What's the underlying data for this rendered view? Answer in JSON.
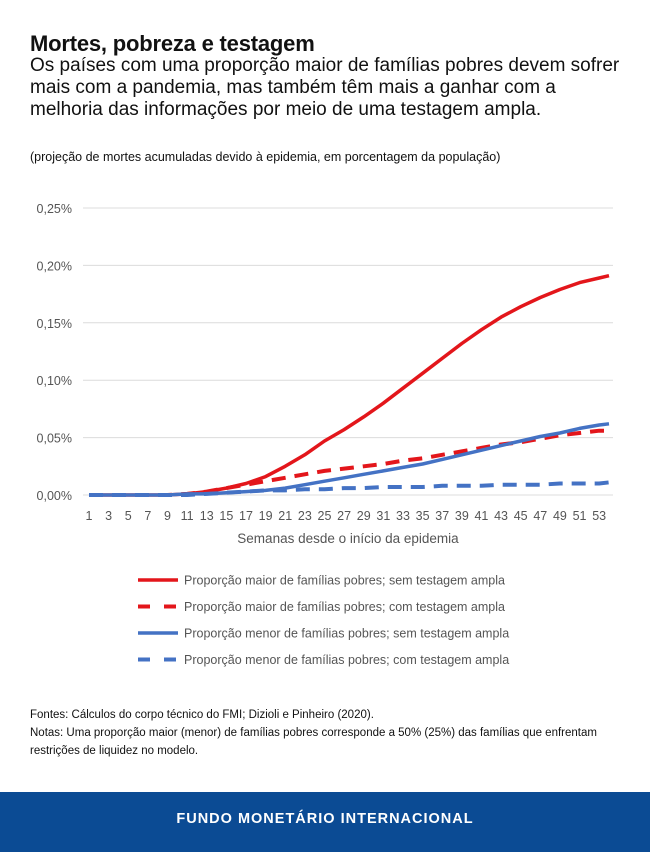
{
  "header": {
    "title": "Mortes, pobreza e testagem",
    "subtitle": "Os países com uma proporção maior de famílias pobres devem sofrer mais com a pandemia, mas também têm mais a ganhar com a melhoria das informações por meio de uma testagem ampla.",
    "note": "(projeção de mortes acumuladas devido à epidemia, em porcentagem da população)"
  },
  "chart_data": {
    "type": "line",
    "title": "",
    "xlabel": "Semanas desde o início da epidemia",
    "ylabel": "",
    "xlim": [
      1,
      54
    ],
    "ylim": [
      0,
      0.25
    ],
    "grid": true,
    "legend_placement": "bottom",
    "x_ticks": [
      "1",
      "3",
      "5",
      "7",
      "9",
      "11",
      "13",
      "15",
      "17",
      "19",
      "21",
      "23",
      "25",
      "27",
      "29",
      "31",
      "33",
      "35",
      "37",
      "39",
      "41",
      "43",
      "45",
      "47",
      "49",
      "51",
      "53"
    ],
    "y_ticks": [
      "0,00%",
      "0,05%",
      "0,10%",
      "0,15%",
      "0,20%",
      "0,25%"
    ],
    "y_tick_values": [
      0,
      0.05,
      0.1,
      0.15,
      0.2,
      0.25
    ],
    "x": [
      1,
      3,
      5,
      7,
      9,
      11,
      13,
      15,
      17,
      19,
      21,
      23,
      25,
      27,
      29,
      31,
      33,
      35,
      37,
      39,
      41,
      43,
      45,
      47,
      49,
      51,
      53,
      54
    ],
    "series": [
      {
        "name": "Proporção maior de famílias pobres; sem testagem ampla",
        "color": "#e3161b",
        "dash": false,
        "values": [
          0,
          0,
          0,
          0,
          0,
          0.001,
          0.003,
          0.006,
          0.01,
          0.016,
          0.025,
          0.035,
          0.047,
          0.057,
          0.068,
          0.08,
          0.093,
          0.106,
          0.119,
          0.132,
          0.144,
          0.155,
          0.164,
          0.172,
          0.179,
          0.185,
          0.189,
          0.191
        ]
      },
      {
        "name": "Proporção maior de famílias pobres; com testagem ampla",
        "color": "#e3161b",
        "dash": true,
        "values": [
          0,
          0,
          0,
          0,
          0,
          0.001,
          0.003,
          0.006,
          0.009,
          0.012,
          0.015,
          0.018,
          0.021,
          0.023,
          0.025,
          0.027,
          0.03,
          0.032,
          0.035,
          0.038,
          0.041,
          0.044,
          0.046,
          0.049,
          0.052,
          0.054,
          0.056,
          0.056
        ]
      },
      {
        "name": "Proporção menor de famílias pobres; sem testagem ampla",
        "color": "#4472c4",
        "dash": false,
        "values": [
          0,
          0,
          0,
          0,
          0,
          0.001,
          0.001,
          0.002,
          0.003,
          0.004,
          0.006,
          0.009,
          0.012,
          0.015,
          0.018,
          0.021,
          0.024,
          0.027,
          0.031,
          0.035,
          0.039,
          0.043,
          0.047,
          0.051,
          0.054,
          0.058,
          0.061,
          0.062
        ]
      },
      {
        "name": "Proporção menor de famílias pobres; com testagem ampla",
        "color": "#4472c4",
        "dash": true,
        "values": [
          0,
          0,
          0,
          0,
          0,
          0,
          0.001,
          0.002,
          0.003,
          0.004,
          0.004,
          0.005,
          0.005,
          0.006,
          0.006,
          0.007,
          0.007,
          0.007,
          0.008,
          0.008,
          0.008,
          0.009,
          0.009,
          0.009,
          0.01,
          0.01,
          0.01,
          0.011
        ]
      }
    ]
  },
  "footnotes": {
    "sources": "Fontes: Cálculos do corpo técnico do FMI; Dizioli e Pinheiro (2020).",
    "notes": "Notas: Uma proporção maior (menor) de famílias pobres corresponde a 50% (25%) das famílias que enfrentam restrições de liquidez no modelo."
  },
  "footer": {
    "label": "FUNDO MONETÁRIO INTERNACIONAL",
    "color": "#0b4b94"
  }
}
